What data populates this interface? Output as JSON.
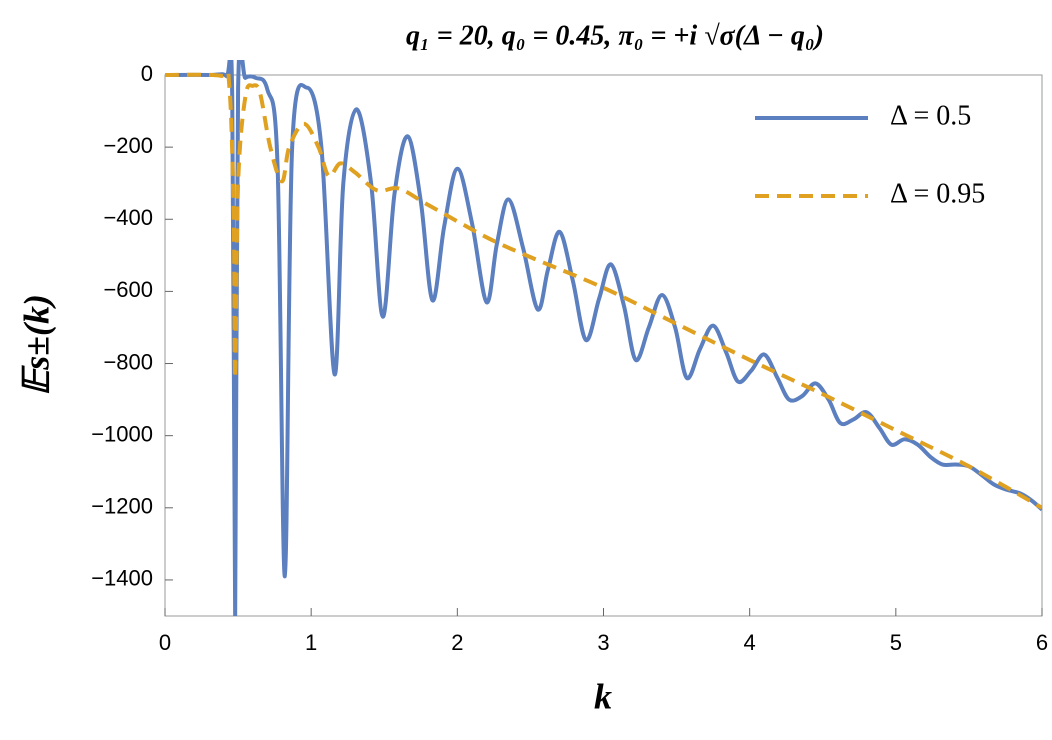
{
  "chart_data": {
    "type": "line",
    "title": "q₁ = 20, q₀ = 0.45, π₀ = +i √σ(Δ − q₀)",
    "x_label": "k",
    "y_label": "𝔼s±(k)",
    "xlim": [
      0,
      6
    ],
    "ylim": [
      -1500,
      0
    ],
    "xticks": [
      0,
      1,
      2,
      3,
      4,
      5,
      6
    ],
    "yticks": [
      0,
      {
        "value": -200,
        "label": "−200"
      },
      {
        "value": -400,
        "label": "−400"
      },
      {
        "value": -600,
        "label": "−600"
      },
      {
        "value": -800,
        "label": "−800"
      },
      {
        "value": -1000,
        "label": "−1000"
      },
      {
        "value": -1200,
        "label": "−1200"
      },
      {
        "value": -1400,
        "label": "−1400"
      }
    ],
    "legend": "upper right",
    "series": [
      {
        "name": "Δ = 0.5",
        "color": "#5b7fbf",
        "dash": "solid",
        "x": [
          0,
          0.3,
          0.42,
          0.46,
          0.48,
          0.5,
          0.55,
          0.62,
          0.7,
          0.77,
          0.82,
          0.87,
          0.97,
          1.07,
          1.16,
          1.22,
          1.31,
          1.41,
          1.49,
          1.57,
          1.66,
          1.75,
          1.83,
          1.91,
          2.0,
          2.1,
          2.2,
          2.27,
          2.35,
          2.45,
          2.55,
          2.62,
          2.7,
          2.79,
          2.88,
          2.97,
          3.05,
          3.14,
          3.22,
          3.31,
          3.4,
          3.49,
          3.57,
          3.66,
          3.75,
          3.84,
          3.92,
          4.01,
          4.1,
          4.19,
          4.27,
          4.36,
          4.45,
          4.54,
          4.62,
          4.71,
          4.8,
          4.89,
          4.97,
          5.06,
          5.15,
          5.24,
          5.32,
          5.41,
          5.5,
          5.59,
          5.67,
          5.76,
          5.85,
          5.93,
          6.0
        ],
        "values": [
          0,
          0,
          -3,
          -60,
          -1500,
          -40,
          -8,
          -8,
          -40,
          -250,
          -1390,
          -200,
          -35,
          -200,
          -830,
          -300,
          -95,
          -300,
          -670,
          -330,
          -170,
          -350,
          -625,
          -420,
          -260,
          -410,
          -630,
          -470,
          -345,
          -480,
          -650,
          -540,
          -435,
          -570,
          -735,
          -620,
          -525,
          -640,
          -790,
          -700,
          -610,
          -700,
          -840,
          -760,
          -695,
          -770,
          -850,
          -820,
          -775,
          -840,
          -900,
          -890,
          -855,
          -900,
          -965,
          -955,
          -935,
          -980,
          -1025,
          -1010,
          -1025,
          -1060,
          -1080,
          -1080,
          -1085,
          -1110,
          -1135,
          -1150,
          -1160,
          -1180,
          -1205
        ]
      },
      {
        "name": "Δ = 0.95",
        "color": "#e0a020",
        "dash": "dashed",
        "x": [
          0,
          0.38,
          0.44,
          0.47,
          0.48,
          0.5,
          0.55,
          0.6,
          0.65,
          0.72,
          0.8,
          0.85,
          0.95,
          1.05,
          1.12,
          1.2,
          1.3,
          1.45,
          1.6,
          1.8,
          2.2,
          2.5,
          3.0,
          3.5,
          4.0,
          4.5,
          5.0,
          5.5,
          6.0
        ],
        "values": [
          0,
          -2,
          -30,
          -400,
          -840,
          -300,
          -60,
          -30,
          -50,
          -200,
          -295,
          -200,
          -135,
          -200,
          -280,
          -245,
          -270,
          -320,
          -315,
          -360,
          -450,
          -505,
          -590,
          -690,
          -790,
          -885,
          -985,
          -1085,
          -1200
        ]
      }
    ]
  }
}
